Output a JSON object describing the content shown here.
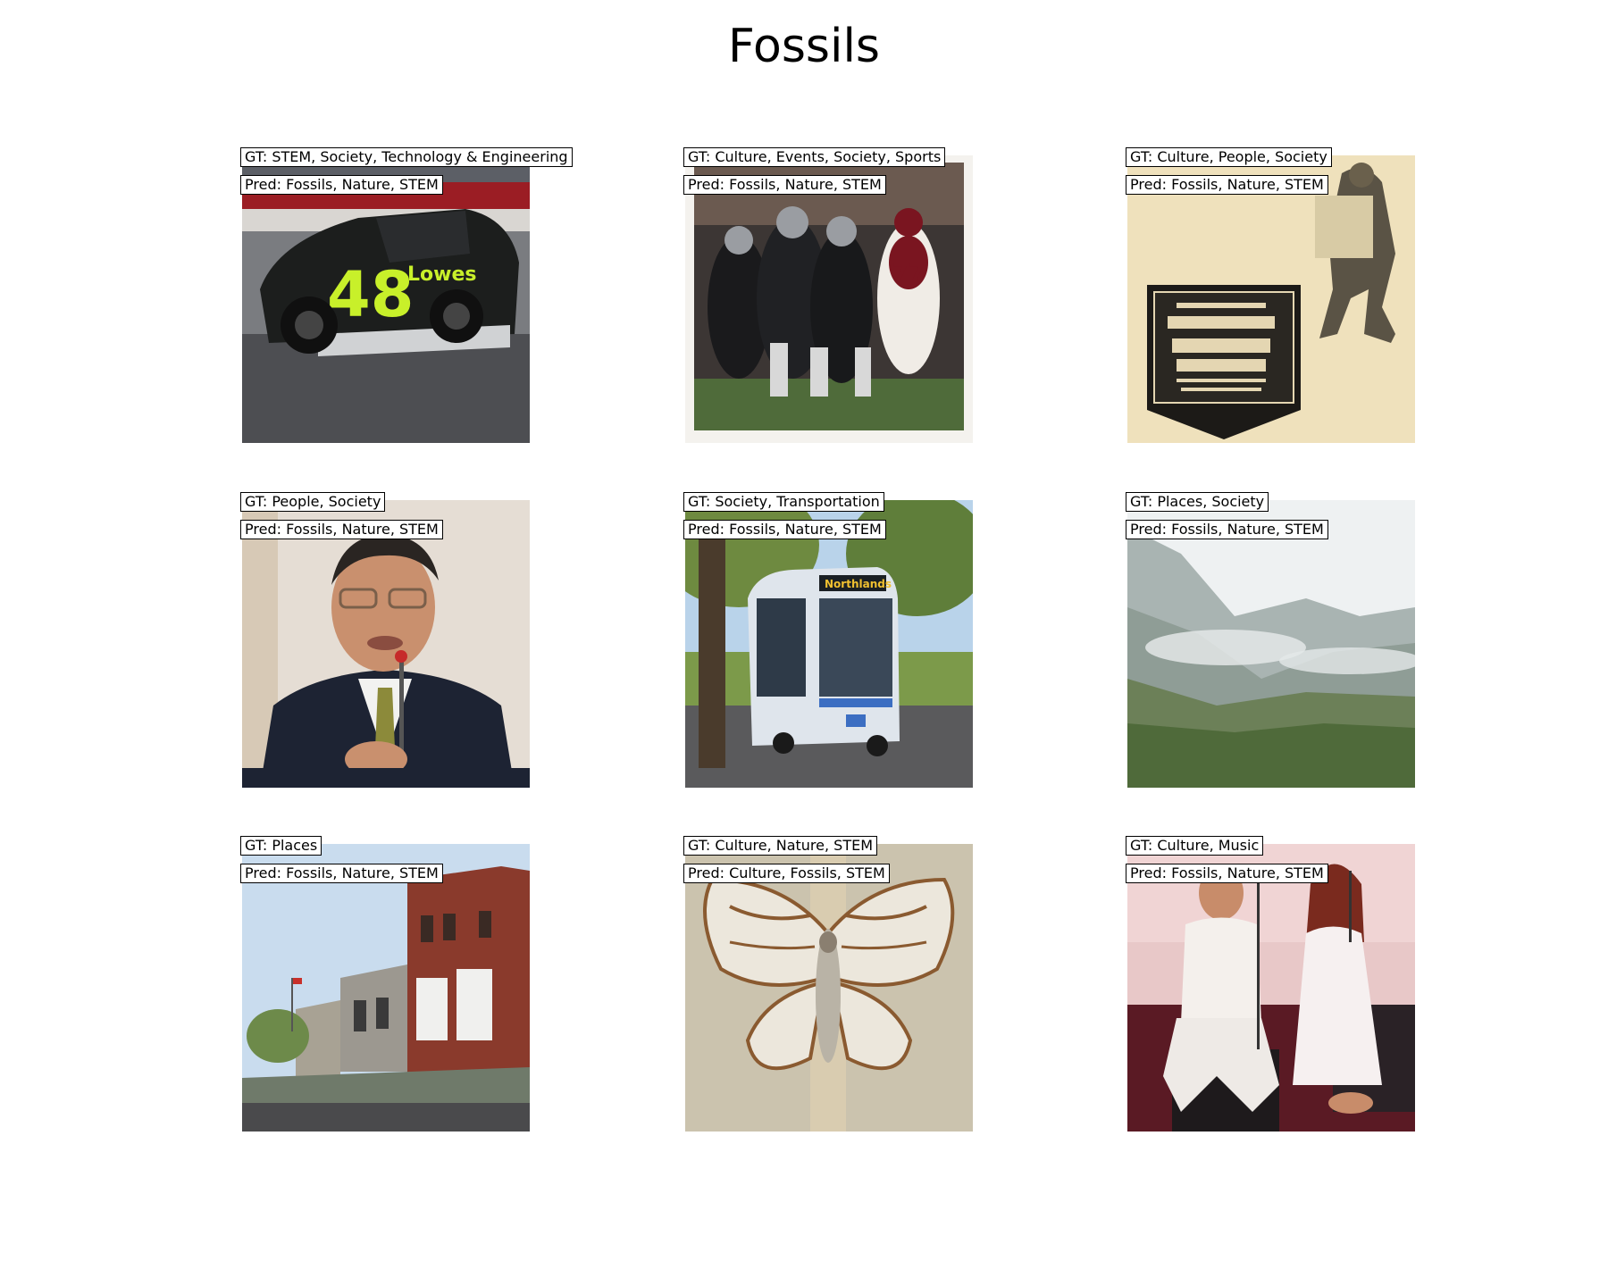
{
  "figure": {
    "title": "Fossils"
  },
  "panels": [
    {
      "gt": "GT: STEM, Society, Technology & Engineering",
      "pred": "Pred: Fossils, Nature, STEM",
      "image": "race-car"
    },
    {
      "gt": "GT: Culture, Events, Society, Sports",
      "pred": "Pred: Fossils, Nature, STEM",
      "image": "football-players"
    },
    {
      "gt": "GT: Culture, People, Society",
      "pred": "Pred: Fossils, Nature, STEM",
      "image": "vintage-film-poster"
    },
    {
      "gt": "GT: People, Society",
      "pred": "Pred: Fossils, Nature, STEM",
      "image": "man-speaking-microphone"
    },
    {
      "gt": "GT: Society, Transportation",
      "pred": "Pred: Fossils, Nature, STEM",
      "image": "city-bus"
    },
    {
      "gt": "GT: Places, Society",
      "pred": "Pred: Fossils, Nature, STEM",
      "image": "misty-mountains"
    },
    {
      "gt": "GT: Places",
      "pred": "Pred: Fossils, Nature, STEM",
      "image": "town-street-buildings"
    },
    {
      "gt": "GT: Culture, Nature, STEM",
      "pred": "Pred: Culture, Fossils, STEM",
      "image": "moth-specimen"
    },
    {
      "gt": "GT: Culture, Music",
      "pred": "Pred: Fossils, Nature, STEM",
      "image": "singers-on-stage"
    }
  ]
}
